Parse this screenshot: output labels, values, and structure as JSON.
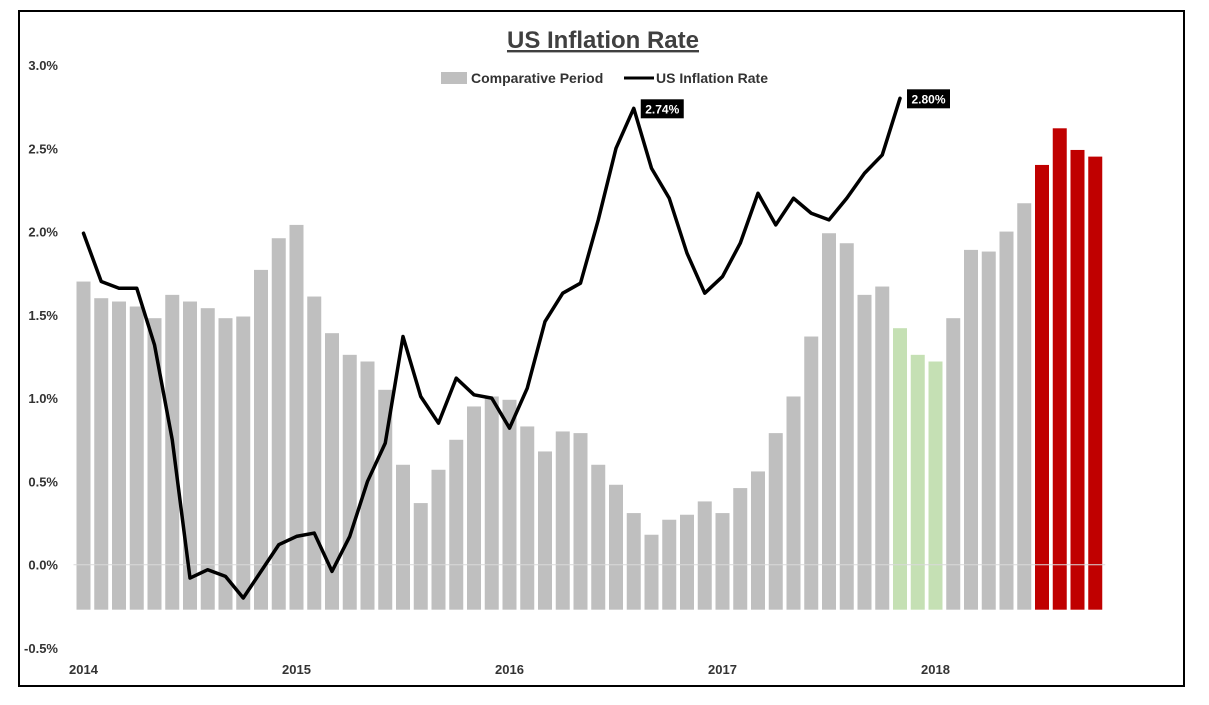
{
  "chart_data": {
    "type": "bar+line",
    "title": "US Inflation Rate",
    "ylim": [
      -0.5,
      3.0
    ],
    "yticks": [
      "3.0%",
      "2.5%",
      "2.0%",
      "1.5%",
      "1.0%",
      "0.5%",
      "0.0%",
      "-0.5%"
    ],
    "ytick_values": [
      3.0,
      2.5,
      2.0,
      1.5,
      1.0,
      0.5,
      0.0,
      -0.5
    ],
    "xticks": [
      {
        "label": "2014",
        "index": 0
      },
      {
        "label": "2015",
        "index": 12
      },
      {
        "label": "2016",
        "index": 24
      },
      {
        "label": "2017",
        "index": 36
      },
      {
        "label": "2018",
        "index": 48
      }
    ],
    "legend": [
      {
        "name": "Comparative Period",
        "kind": "bar",
        "color": "#BFBFBF"
      },
      {
        "name": "US Inflation Rate",
        "kind": "line",
        "color": "#000000"
      }
    ],
    "bar_base": -0.27,
    "bar_colors": {
      "default": "#BFBFBF",
      "green": "#C5E0B4",
      "red": "#C00000"
    },
    "bars": [
      1.7,
      1.6,
      1.58,
      1.55,
      1.48,
      1.62,
      1.58,
      1.54,
      1.48,
      1.49,
      1.77,
      1.96,
      2.04,
      1.61,
      1.39,
      1.26,
      1.22,
      1.05,
      0.6,
      0.37,
      0.57,
      0.75,
      0.95,
      1.01,
      0.99,
      0.83,
      0.68,
      0.8,
      0.79,
      0.6,
      0.48,
      0.31,
      0.18,
      0.27,
      0.3,
      0.38,
      0.31,
      0.46,
      0.56,
      0.79,
      1.01,
      1.37,
      1.99,
      1.93,
      1.62,
      1.67,
      1.42,
      1.26,
      1.22,
      1.48,
      1.89,
      1.88,
      2.0,
      2.17,
      2.4,
      2.62,
      2.49,
      2.45
    ],
    "bar_color_keys": [
      "default",
      "default",
      "default",
      "default",
      "default",
      "default",
      "default",
      "default",
      "default",
      "default",
      "default",
      "default",
      "default",
      "default",
      "default",
      "default",
      "default",
      "default",
      "default",
      "default",
      "default",
      "default",
      "default",
      "default",
      "default",
      "default",
      "default",
      "default",
      "default",
      "default",
      "default",
      "default",
      "default",
      "default",
      "default",
      "default",
      "default",
      "default",
      "default",
      "default",
      "default",
      "default",
      "default",
      "default",
      "default",
      "default",
      "green",
      "green",
      "green",
      "default",
      "default",
      "default",
      "default",
      "default",
      "red",
      "red",
      "red",
      "red"
    ],
    "line": {
      "name": "US Inflation Rate",
      "color": "#000000",
      "values": [
        1.99,
        1.7,
        1.66,
        1.66,
        1.32,
        0.75,
        -0.08,
        -0.03,
        -0.07,
        -0.2,
        -0.04,
        0.12,
        0.17,
        0.19,
        -0.04,
        0.17,
        0.5,
        0.73,
        1.37,
        1.01,
        0.85,
        1.12,
        1.02,
        1.0,
        0.82,
        1.06,
        1.46,
        1.63,
        1.69,
        2.07,
        2.5,
        2.74,
        2.38,
        2.2,
        1.87,
        1.63,
        1.73,
        1.93,
        2.23,
        2.04,
        2.2,
        2.11,
        2.07,
        2.2,
        2.35,
        2.46,
        2.8
      ]
    },
    "data_labels": [
      {
        "text": "2.74%",
        "index": 31
      },
      {
        "text": "2.80%",
        "index": 46
      }
    ]
  }
}
